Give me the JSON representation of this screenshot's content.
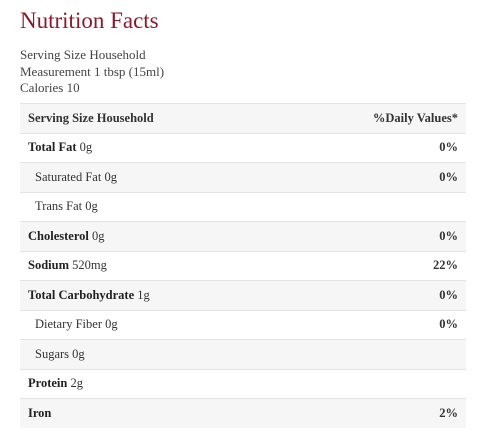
{
  "title": "Nutrition Facts",
  "info": [
    "Serving Size Household",
    "Measurement 1 tbsp (15ml)",
    "Calories 10"
  ],
  "table": {
    "header": [
      "Serving Size Household",
      "%Daily Values*"
    ],
    "rows": [
      {
        "name": "Total Fat",
        "amount": "0g",
        "dv": "0%",
        "sub": [
          {
            "name": "Saturated Fat",
            "amount": "0g",
            "dv": "0%"
          },
          {
            "name": "Trans Fat",
            "amount": "0g"
          }
        ]
      },
      {
        "name": "Cholesterol",
        "amount": "0g",
        "dv": "0%"
      },
      {
        "name": "Sodium",
        "amount": "520mg",
        "dv": "22%"
      },
      {
        "name": "Total Carbohydrate",
        "amount": "1g",
        "dv": "0%",
        "sub": [
          {
            "name": "Dietary Fiber",
            "amount": "0g",
            "dv": "0%"
          },
          {
            "name": "Sugars",
            "amount": "0g"
          }
        ]
      },
      {
        "name": "Protein",
        "amount": "2g"
      },
      {
        "name": "Iron",
        "dv": "2%"
      }
    ]
  }
}
